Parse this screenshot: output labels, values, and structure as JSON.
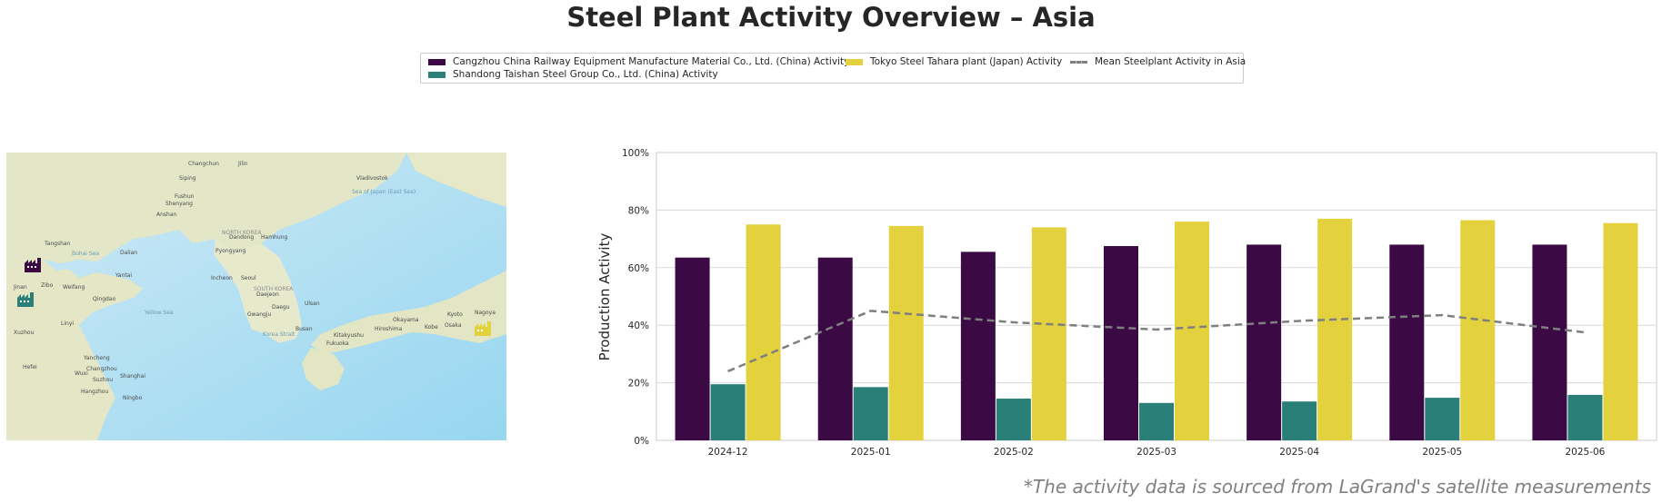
{
  "title": "Steel Plant Activity Overview – Asia",
  "footnote": "*The activity data is sourced from LaGrand's satellite measurements",
  "legend": [
    {
      "label": "Cangzhou China Railway Equipment Manufacture Material Co., Ltd. (China) Activity",
      "color": "#3b0a45",
      "kind": "bar"
    },
    {
      "label": "Shandong Taishan Steel Group Co., Ltd. (China) Activity",
      "color": "#2a8079",
      "kind": "bar"
    },
    {
      "label": "Tokyo Steel Tahara plant (Japan) Activity",
      "color": "#e3d13e",
      "kind": "bar"
    },
    {
      "label": "Mean Steelplant Activity in Asia",
      "color": "#7f7f7f",
      "kind": "line"
    }
  ],
  "map": {
    "labels": [
      "Changchun",
      "Jilin",
      "Vladivostok",
      "Siping",
      "Shenyang",
      "Fushun",
      "Anshan",
      "Dandong",
      "Tangshan",
      "Dalian",
      "Pyongyang",
      "Hamhung",
      "Seoul",
      "Incheon",
      "Daejeon",
      "Daegu",
      "Gwangju",
      "Busan",
      "Ulsan",
      "Kitakyushu",
      "Fukuoka",
      "Hiroshima",
      "Okayama",
      "Kobe",
      "Osaka",
      "Kyoto",
      "Nagoya",
      "Yantai",
      "Qingdao",
      "Weifang",
      "Jinan",
      "Zibo",
      "Linyi",
      "Xuzhou",
      "Yancheng",
      "Hefei",
      "Wuxi",
      "Suzhou",
      "Changzhou",
      "Shanghai",
      "Hangzhou",
      "Ningbo",
      "NORTH KOREA",
      "SOUTH KOREA",
      "Bohai Sea",
      "Yellow Sea",
      "Sea of Japan (East Sea)",
      "Korea Strait"
    ],
    "markers": [
      {
        "name": "cangzhou-factory-icon",
        "color": "#3b0a45"
      },
      {
        "name": "shandong-factory-icon",
        "color": "#2a8079"
      },
      {
        "name": "tahara-factory-icon",
        "color": "#e3d13e"
      }
    ]
  },
  "chart_data": {
    "type": "bar",
    "title": "",
    "xlabel": "",
    "ylabel": "Production Activity",
    "ylim": [
      0,
      100
    ],
    "yticks": [
      0,
      20,
      40,
      60,
      80,
      100
    ],
    "ytick_labels": [
      "0%",
      "20%",
      "40%",
      "60%",
      "80%",
      "100%"
    ],
    "grid": true,
    "categories": [
      "2024-12",
      "2025-01",
      "2025-02",
      "2025-03",
      "2025-04",
      "2025-05",
      "2025-06"
    ],
    "series": [
      {
        "name": "Cangzhou China Railway Equipment Manufacture Material Co., Ltd. (China) Activity",
        "type": "bar",
        "color": "#3b0a45",
        "values": [
          63.5,
          63.5,
          65.5,
          67.5,
          68,
          68,
          68
        ]
      },
      {
        "name": "Shandong Taishan Steel Group Co., Ltd. (China) Activity",
        "type": "bar",
        "color": "#2a8079",
        "values": [
          19.5,
          18.5,
          14.5,
          13,
          13.5,
          14.8,
          15.8
        ]
      },
      {
        "name": "Tokyo Steel Tahara plant (Japan) Activity",
        "type": "bar",
        "color": "#e3d13e",
        "values": [
          75,
          74.5,
          74,
          76,
          77,
          76.5,
          75.5
        ]
      },
      {
        "name": "Mean Steelplant Activity in Asia",
        "type": "line",
        "color": "#7f7f7f",
        "values": [
          24,
          45,
          41,
          38.5,
          41.5,
          43.5,
          37.5
        ]
      }
    ]
  }
}
